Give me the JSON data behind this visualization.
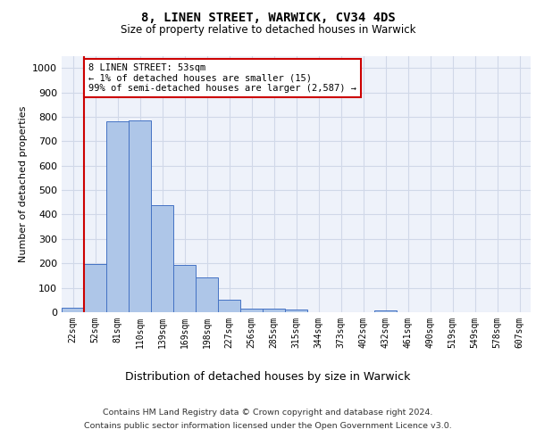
{
  "title1": "8, LINEN STREET, WARWICK, CV34 4DS",
  "title2": "Size of property relative to detached houses in Warwick",
  "xlabel": "Distribution of detached houses by size in Warwick",
  "ylabel": "Number of detached properties",
  "bar_labels": [
    "22sqm",
    "52sqm",
    "81sqm",
    "110sqm",
    "139sqm",
    "169sqm",
    "198sqm",
    "227sqm",
    "256sqm",
    "285sqm",
    "315sqm",
    "344sqm",
    "373sqm",
    "402sqm",
    "432sqm",
    "461sqm",
    "490sqm",
    "519sqm",
    "549sqm",
    "578sqm",
    "607sqm"
  ],
  "bar_heights": [
    20,
    197,
    782,
    787,
    437,
    193,
    141,
    50,
    15,
    13,
    12,
    0,
    0,
    0,
    9,
    0,
    0,
    0,
    0,
    0,
    0
  ],
  "bar_color": "#aec6e8",
  "bar_edge_color": "#4472c4",
  "annotation_text": "8 LINEN STREET: 53sqm\n← 1% of detached houses are smaller (15)\n99% of semi-detached houses are larger (2,587) →",
  "annotation_box_color": "#ffffff",
  "annotation_box_edge_color": "#cc0000",
  "property_line_color": "#cc0000",
  "grid_color": "#d0d8e8",
  "background_color": "#eef2fa",
  "ylim": [
    0,
    1050
  ],
  "yticks": [
    0,
    100,
    200,
    300,
    400,
    500,
    600,
    700,
    800,
    900,
    1000
  ],
  "footer1": "Contains HM Land Registry data © Crown copyright and database right 2024.",
  "footer2": "Contains public sector information licensed under the Open Government Licence v3.0."
}
